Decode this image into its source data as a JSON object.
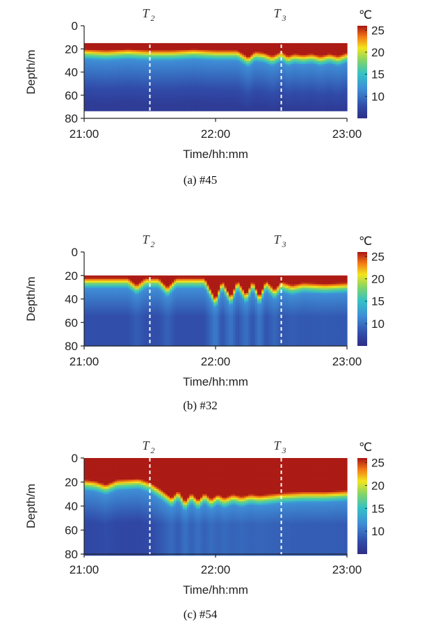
{
  "chart_data": [
    {
      "type": "heatmap",
      "panel": "a",
      "caption": "(a) #45",
      "xlabel": "Time/hh:mm",
      "ylabel": "Depth/m",
      "x_ticks": [
        "21:00",
        "22:00",
        "23:00"
      ],
      "y_ticks": [
        "0",
        "20",
        "40",
        "60",
        "80"
      ],
      "xlim_min": [
        0,
        120
      ],
      "ylim_m": [
        0,
        80
      ],
      "colorbar_unit": "℃",
      "colorbar_ticks": [
        "25",
        "20",
        "15",
        "10"
      ],
      "colorbar_range": [
        5,
        26
      ],
      "markers": [
        {
          "label": "T",
          "sub": "2",
          "time_min": 30
        },
        {
          "label": "T",
          "sub": "3",
          "time_min": 90
        }
      ],
      "data_depth_range_m": [
        15,
        73
      ],
      "thermocline_depth_m": [
        [
          0,
          20
        ],
        [
          10,
          21
        ],
        [
          20,
          20
        ],
        [
          30,
          21
        ],
        [
          40,
          21
        ],
        [
          50,
          20
        ],
        [
          60,
          21
        ],
        [
          70,
          21
        ],
        [
          75,
          27
        ],
        [
          78,
          22
        ],
        [
          82,
          23
        ],
        [
          86,
          26
        ],
        [
          90,
          22
        ],
        [
          93,
          26
        ],
        [
          96,
          24
        ],
        [
          100,
          25
        ],
        [
          104,
          24
        ],
        [
          108,
          26
        ],
        [
          112,
          24
        ],
        [
          116,
          26
        ],
        [
          120,
          23
        ]
      ]
    },
    {
      "type": "heatmap",
      "panel": "b",
      "caption": "(b) #32",
      "xlabel": "Time/hh:mm",
      "ylabel": "Depth/m",
      "x_ticks": [
        "21:00",
        "22:00",
        "23:00"
      ],
      "y_ticks": [
        "0",
        "20",
        "40",
        "60",
        "80"
      ],
      "xlim_min": [
        0,
        120
      ],
      "ylim_m": [
        0,
        80
      ],
      "colorbar_unit": "℃",
      "colorbar_ticks": [
        "25",
        "20",
        "15",
        "10"
      ],
      "colorbar_range": [
        5,
        26
      ],
      "markers": [
        {
          "label": "T",
          "sub": "2",
          "time_min": 30
        },
        {
          "label": "T",
          "sub": "3",
          "time_min": 90
        }
      ],
      "data_depth_range_m": [
        20,
        80
      ],
      "thermocline_depth_m": [
        [
          0,
          22
        ],
        [
          20,
          22
        ],
        [
          24,
          28
        ],
        [
          28,
          22
        ],
        [
          34,
          22
        ],
        [
          38,
          30
        ],
        [
          42,
          22
        ],
        [
          55,
          22
        ],
        [
          60,
          40
        ],
        [
          63,
          24
        ],
        [
          67,
          38
        ],
        [
          70,
          24
        ],
        [
          74,
          36
        ],
        [
          77,
          24
        ],
        [
          80,
          38
        ],
        [
          83,
          24
        ],
        [
          87,
          32
        ],
        [
          90,
          25
        ],
        [
          95,
          28
        ],
        [
          100,
          26
        ],
        [
          110,
          27
        ],
        [
          120,
          26
        ]
      ]
    },
    {
      "type": "heatmap",
      "panel": "c",
      "caption": "(c) #54",
      "xlabel": "Time/hh:mm",
      "ylabel": "Depth/m",
      "x_ticks": [
        "21:00",
        "22:00",
        "23:00"
      ],
      "y_ticks": [
        "0",
        "20",
        "40",
        "60",
        "80"
      ],
      "xlim_min": [
        0,
        120
      ],
      "ylim_m": [
        0,
        80
      ],
      "colorbar_unit": "℃",
      "colorbar_ticks": [
        "25",
        "20",
        "15",
        "10"
      ],
      "colorbar_range": [
        5,
        26
      ],
      "markers": [
        {
          "label": "T",
          "sub": "2",
          "time_min": 30
        },
        {
          "label": "T",
          "sub": "3",
          "time_min": 90
        }
      ],
      "data_depth_range_m": [
        0,
        80
      ],
      "thermocline_depth_m": [
        [
          0,
          18
        ],
        [
          5,
          19
        ],
        [
          10,
          22
        ],
        [
          15,
          18
        ],
        [
          25,
          17
        ],
        [
          30,
          20
        ],
        [
          35,
          26
        ],
        [
          40,
          33
        ],
        [
          43,
          27
        ],
        [
          46,
          36
        ],
        [
          49,
          29
        ],
        [
          52,
          35
        ],
        [
          55,
          29
        ],
        [
          58,
          34
        ],
        [
          61,
          30
        ],
        [
          64,
          33
        ],
        [
          68,
          30
        ],
        [
          72,
          32
        ],
        [
          76,
          30
        ],
        [
          80,
          31
        ],
        [
          90,
          29
        ],
        [
          100,
          28
        ],
        [
          110,
          28
        ],
        [
          120,
          27
        ]
      ]
    }
  ]
}
